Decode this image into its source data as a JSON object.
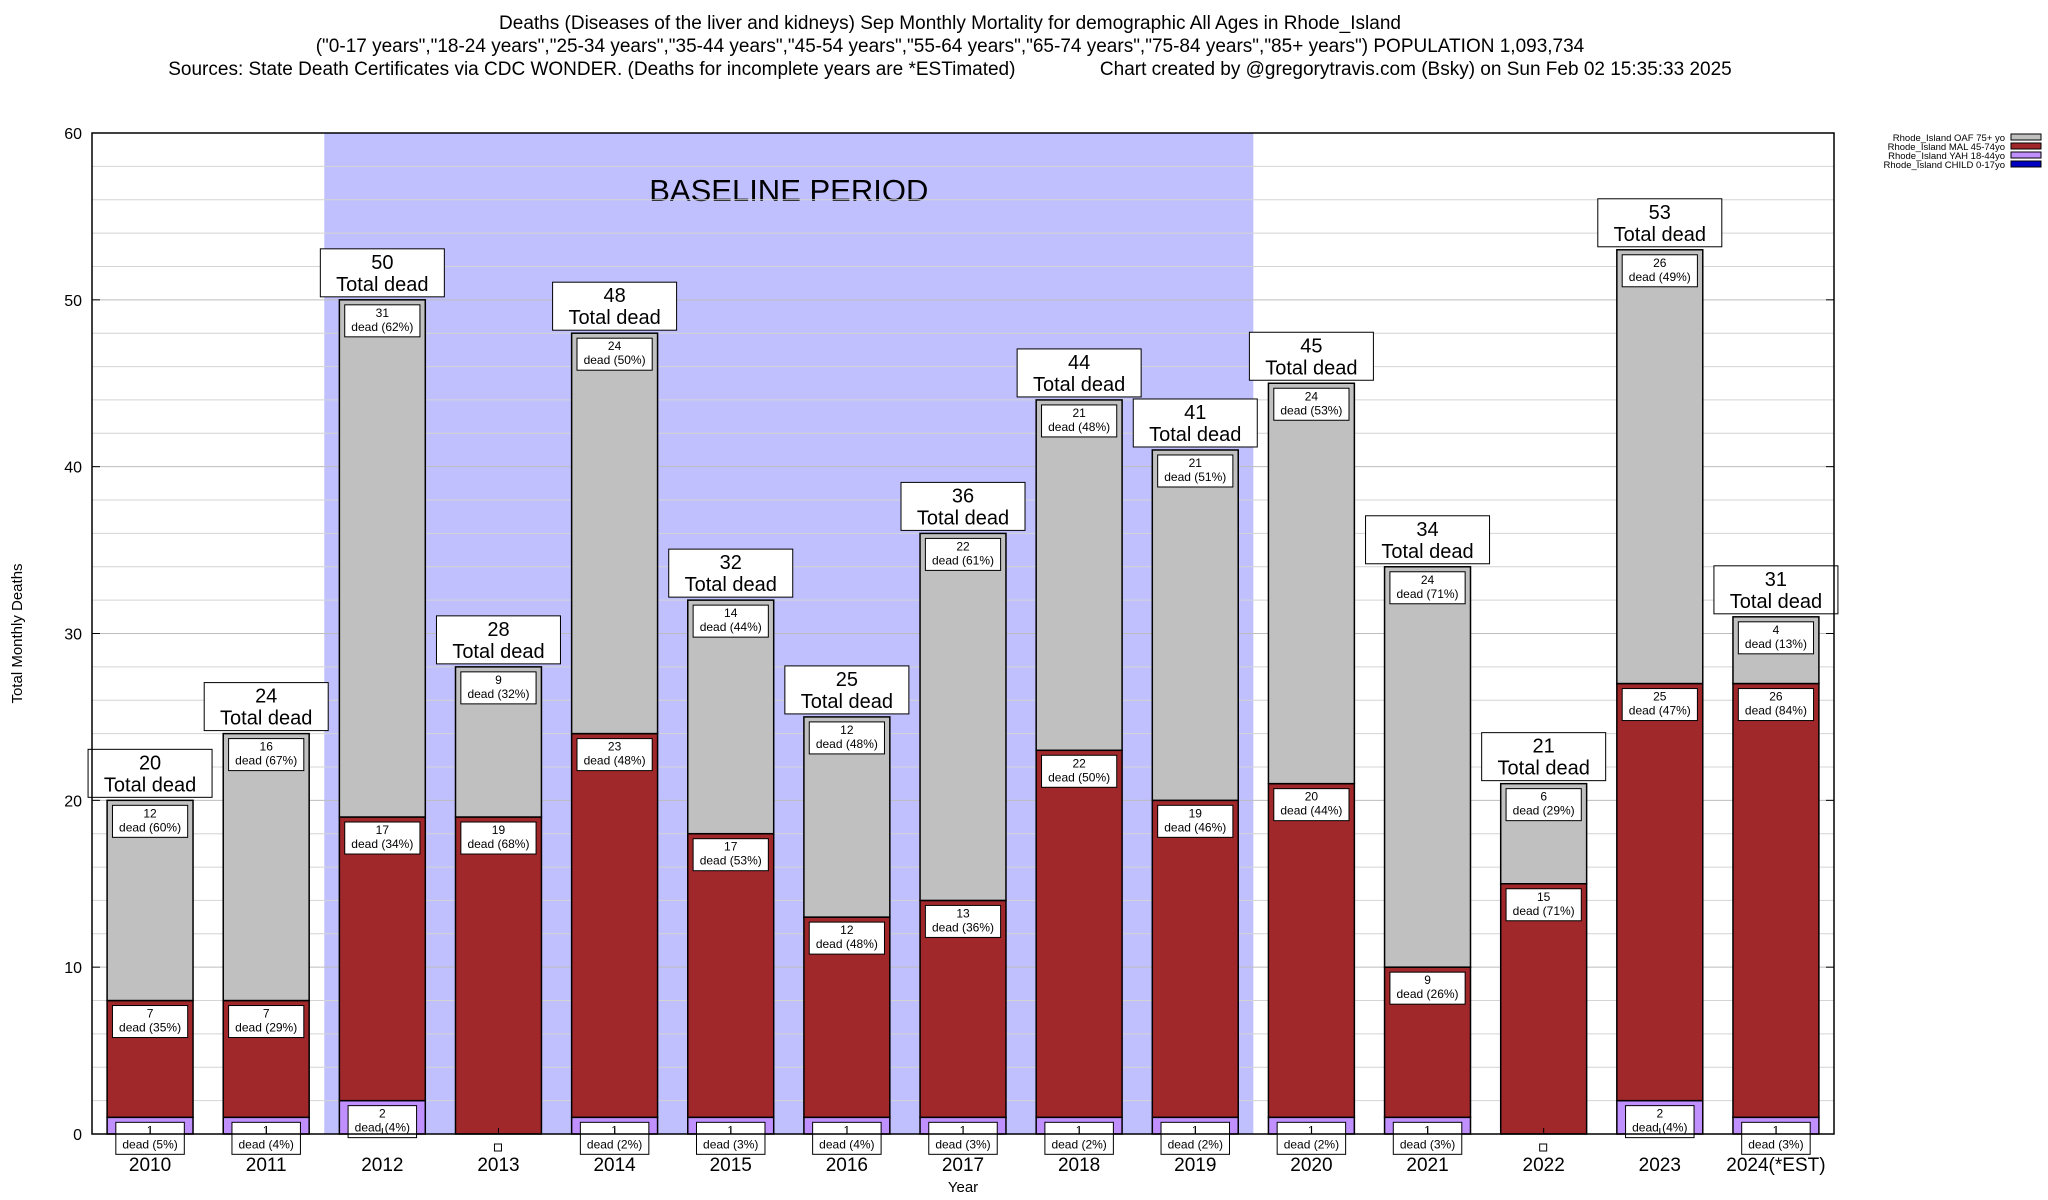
{
  "header": {
    "title_line1": "Deaths (Diseases of the liver and kidneys) Sep Monthly Mortality for demographic All Ages in Rhode_Island",
    "title_line2": "(\"0-17 years\",\"18-24 years\",\"25-34 years\",\"35-44 years\",\"45-54 years\",\"55-64 years\",\"65-74 years\",\"75-84 years\",\"85+ years\") POPULATION 1,093,734",
    "title_line3": "Sources: State Death Certificates via CDC WONDER. (Deaths for incomplete years are *ESTimated)                Chart created by @gregorytravis.com (Bsky) on Sun Feb 02 15:35:33 2025"
  },
  "chart_data": {
    "type": "bar",
    "stacked": true,
    "xlabel": "Year",
    "ylabel": "Total Monthly Deaths",
    "ylim": [
      0,
      60
    ],
    "y_ticks": [
      0,
      10,
      20,
      30,
      40,
      50,
      60
    ],
    "grid": true,
    "legend_position": "top-right",
    "baseline": {
      "label": "BASELINE PERIOD",
      "from": "2012",
      "to": "2019",
      "color": "#c0c0ff"
    },
    "categories": [
      "2010",
      "2011",
      "2012",
      "2013",
      "2014",
      "2015",
      "2016",
      "2017",
      "2018",
      "2019",
      "2020",
      "2021",
      "2022",
      "2023",
      "2024(*EST)"
    ],
    "totals": [
      20,
      24,
      50,
      28,
      48,
      32,
      25,
      36,
      44,
      41,
      45,
      34,
      21,
      53,
      31
    ],
    "total_suffix": "Total dead",
    "segment_word": "dead",
    "series": [
      {
        "name": "Rhode_Island CHILD 0-17yo",
        "color": "#0000c0",
        "values": [
          0,
          0,
          0,
          0,
          0,
          0,
          0,
          0,
          0,
          0,
          0,
          0,
          0,
          0,
          0
        ],
        "labels": [
          "",
          "",
          "",
          "",
          "",
          "",
          "",
          "",
          "",
          "",
          "",
          "",
          "",
          "",
          ""
        ]
      },
      {
        "name": "Rhode_Island YAH 18-44yo",
        "color": "#c090ff",
        "values": [
          1,
          1,
          2,
          0,
          1,
          1,
          1,
          1,
          1,
          1,
          1,
          1,
          0,
          2,
          1
        ],
        "labels": [
          "(5%)",
          "(4%)",
          "(4%)",
          "",
          "(2%)",
          "(3%)",
          "(4%)",
          "(3%)",
          "(2%)",
          "(2%)",
          "(2%)",
          "(3%)",
          "",
          "(4%)",
          "(3%)"
        ]
      },
      {
        "name": "Rhode_Island MAL 45-74yo",
        "color": "#a0282a",
        "values": [
          7,
          7,
          17,
          19,
          23,
          17,
          12,
          13,
          22,
          19,
          20,
          9,
          15,
          25,
          26
        ],
        "labels": [
          "(35%)",
          "(29%)",
          "(34%)",
          "(68%)",
          "(48%)",
          "(53%)",
          "(48%)",
          "(36%)",
          "(50%)",
          "(46%)",
          "(44%)",
          "(26%)",
          "(71%)",
          "(47%)",
          "(84%)"
        ]
      },
      {
        "name": "Rhode_Island OAF 75+ yo",
        "color": "#c0c0c0",
        "values": [
          12,
          16,
          31,
          9,
          24,
          14,
          12,
          22,
          21,
          21,
          24,
          24,
          6,
          26,
          4
        ],
        "labels": [
          "(60%)",
          "(67%)",
          "(62%)",
          "(32%)",
          "(50%)",
          "(44%)",
          "(48%)",
          "(61%)",
          "(48%)",
          "(51%)",
          "(53%)",
          "(71%)",
          "(29%)",
          "(49%)",
          "(13%)"
        ]
      }
    ]
  }
}
